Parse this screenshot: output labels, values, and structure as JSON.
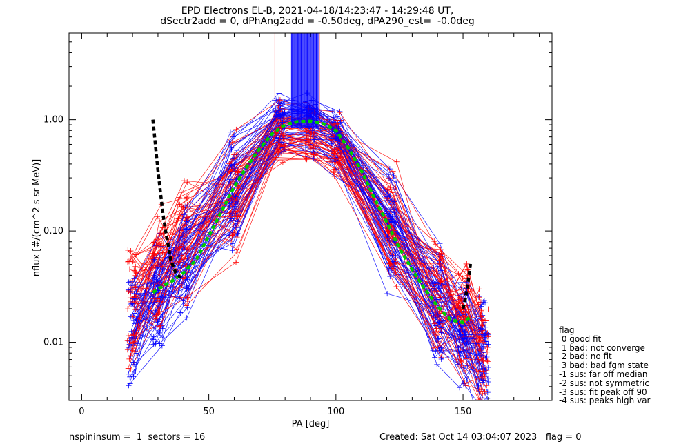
{
  "chart_data": {
    "type": "scatter",
    "title": "EPD Electrons EL-B, 2021-04-18/14:23:47 - 14:29:48 UT,",
    "subtitle": "dSectr2add = 0, dPhAng2add = -0.50deg, dPA290_est=  -0.0deg",
    "xlabel": "PA [deg]",
    "ylabel": "nflux [#/(cm^2 s sr MeV)]",
    "xlim": [
      -5,
      185
    ],
    "ylim": [
      0.003,
      6
    ],
    "yscale": "log",
    "x_ticks": [
      0,
      50,
      100,
      150
    ],
    "x_tick_labels": [
      "0",
      "50",
      "100",
      "150"
    ],
    "y_ticks": [
      0.01,
      0.1,
      1.0
    ],
    "y_tick_labels": [
      "0.01",
      "0.10",
      "1.00"
    ],
    "series": [
      {
        "color": "#ff0000",
        "style": "thin line with plus markers",
        "x": [
          20,
          30,
          40,
          60,
          78,
          90,
          100,
          122,
          140,
          150,
          158
        ],
        "y": [
          0.02,
          0.045,
          0.08,
          0.2,
          0.8,
          0.75,
          0.6,
          0.12,
          0.025,
          0.015,
          0.008
        ]
      },
      {
        "color": "#0000ff",
        "style": "thin line with plus markers",
        "x": [
          20,
          30,
          40,
          60,
          78,
          90,
          100,
          122,
          140,
          150,
          158
        ],
        "y": [
          0.012,
          0.025,
          0.05,
          0.2,
          0.9,
          0.85,
          0.65,
          0.1,
          0.02,
          0.012,
          0.007
        ]
      },
      {
        "color": "#00cc00",
        "style": "thick dashed fit curve",
        "x": [
          28,
          32,
          36,
          40,
          45,
          50,
          55,
          60,
          65,
          70,
          75,
          80,
          85,
          90,
          95,
          100,
          105,
          110,
          115,
          120,
          125,
          130,
          135,
          140,
          145,
          150,
          153
        ],
        "y": [
          0.028,
          0.032,
          0.036,
          0.042,
          0.055,
          0.09,
          0.15,
          0.25,
          0.38,
          0.55,
          0.75,
          0.9,
          0.96,
          0.97,
          0.92,
          0.8,
          0.55,
          0.35,
          0.2,
          0.12,
          0.07,
          0.045,
          0.03,
          0.021,
          0.016,
          0.015,
          0.017
        ]
      },
      {
        "color": "#000000",
        "style": "thick dashed",
        "x": [
          28,
          30,
          31,
          32,
          33,
          34,
          35,
          37,
          39
        ],
        "y": [
          1.0,
          0.35,
          0.22,
          0.14,
          0.1,
          0.075,
          0.055,
          0.042,
          0.038
        ]
      },
      {
        "color": "#000000",
        "style": "thick dashed",
        "x": [
          150,
          151,
          152,
          153
        ],
        "y": [
          0.02,
          0.025,
          0.035,
          0.052
        ]
      }
    ],
    "annotations": [
      {
        "color": "#0000ff",
        "desc": "dense vertical band near PA 83-93 above 1.0"
      },
      {
        "color": "#ff0000",
        "desc": "vertical line at PA 76 above 1.0"
      }
    ],
    "legend_title": "flag",
    "legend": [
      " 0 good fit",
      " 1 bad: not converge",
      " 2 bad: no fit",
      " 3 bad: bad fgm state",
      "-1 sus: far off median",
      "-2 sus: not symmetric",
      "-3 sus: fit peak off 90",
      "-4 sus: peaks high var"
    ],
    "legend_placement": "right, outside plot"
  },
  "footer": {
    "left": "nspininsum =  1  sectors = 16",
    "right": "Created: Sat Oct 14 03:04:07 2023   flag = 0"
  }
}
